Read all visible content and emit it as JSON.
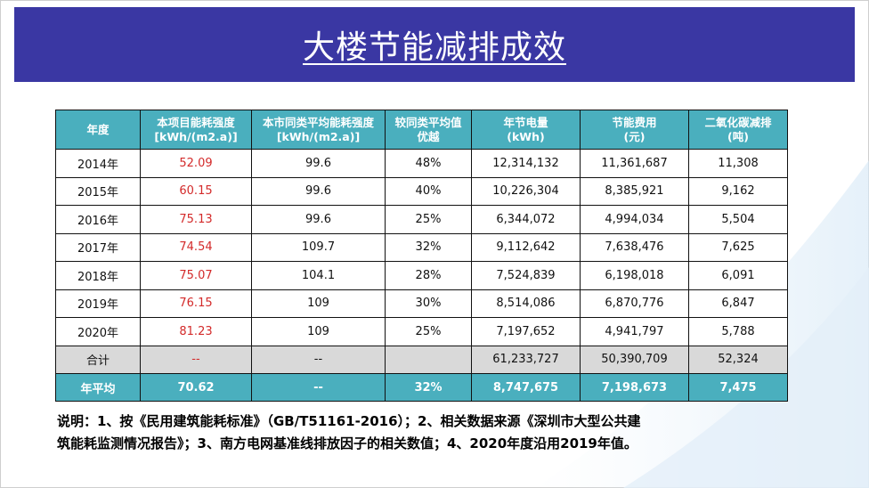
{
  "title": "大楼节能减排成效",
  "colors": {
    "title_bar": "#3a37a3",
    "table_header": "#4aafbe",
    "total_row": "#d9d9d9",
    "highlight_red": "#d32a2a"
  },
  "table": {
    "headers": [
      [
        "年度"
      ],
      [
        "本项目能耗强度",
        "[kWh/(m2.a)]"
      ],
      [
        "本市同类平均能耗强度",
        "[kWh/(m2.a)]"
      ],
      [
        "较同类平均值",
        "优越"
      ],
      [
        "年节电量",
        "(kWh)"
      ],
      [
        "节能费用",
        "(元)"
      ],
      [
        "二氧化碳减排",
        "(吨)"
      ]
    ],
    "rows": [
      [
        "2014年",
        "52.09",
        "99.6",
        "48%",
        "12,314,132",
        "11,361,687",
        "11,308"
      ],
      [
        "2015年",
        "60.15",
        "99.6",
        "40%",
        "10,226,304",
        "8,385,921",
        "9,162"
      ],
      [
        "2016年",
        "75.13",
        "99.6",
        "25%",
        "6,344,072",
        "4,994,034",
        "5,504"
      ],
      [
        "2017年",
        "74.54",
        "109.7",
        "32%",
        "9,112,642",
        "7,638,476",
        "7,625"
      ],
      [
        "2018年",
        "75.07",
        "104.1",
        "28%",
        "7,524,839",
        "6,198,018",
        "6,091"
      ],
      [
        "2019年",
        "76.15",
        "109",
        "30%",
        "8,514,086",
        "6,870,776",
        "6,847"
      ],
      [
        "2020年",
        "81.23",
        "109",
        "25%",
        "7,197,652",
        "4,941,797",
        "5,788"
      ]
    ],
    "total": [
      "合计",
      "--",
      "--",
      "",
      "61,233,727",
      "50,390,709",
      "52,324"
    ],
    "average": [
      "年平均",
      "70.62",
      "--",
      "32%",
      "8,747,675",
      "7,198,673",
      "7,475"
    ]
  },
  "note": {
    "line1": "说明：1、按《民用建筑能耗标准》（GB/T51161-2016）；2、相关数据来源《深圳市大型公共建",
    "line2": "筑能耗监测情况报告》；3、南方电网基准线排放因子的相关数值；4、2020年度沿用2019年值。"
  }
}
